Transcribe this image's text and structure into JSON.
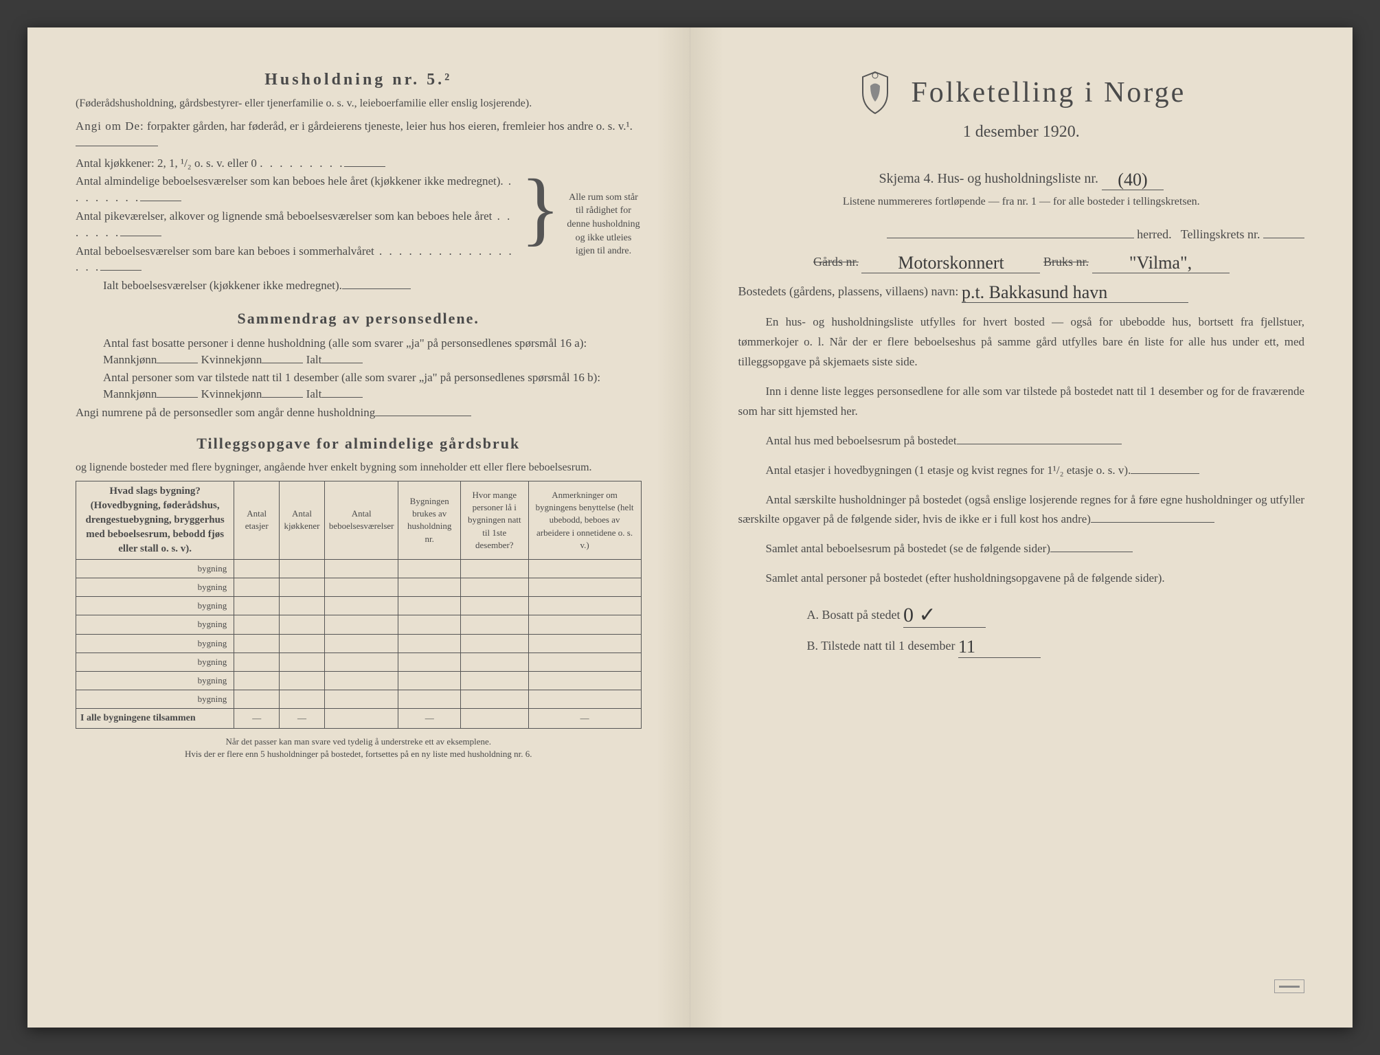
{
  "colors": {
    "paper": "#e8e0d0",
    "ink": "#4a4a4a",
    "background": "#3a3a3a",
    "rule": "#555555",
    "handwriting": "#3a3a3a"
  },
  "left": {
    "heading": "Husholdning nr. 5.²",
    "subheading": "(Føderådshusholdning, gårdsbestyrer- eller tjenerfamilie o. s. v., leieboerfamilie eller enslig losjerende).",
    "angi_label": "Angi om De:",
    "angi_text": "forpakter gården, har føderåd, er i gårdeierens tjeneste, leier hus hos eieren, fremleier hos andre o. s. v.¹.",
    "kitchen_label": "Antal kjøkkener: 2, 1, ¹/₂ o. s. v. eller 0",
    "rooms": [
      "Antal almindelige beboelsesværelser som kan beboes hele året (kjøkkener ikke medregnet).",
      "Antal pikeværelser, alkover og lignende små beboelsesværelser som kan beboes hele året",
      "Antal beboelsesværelser som bare kan beboes i sommerhalvåret"
    ],
    "rooms_total": "Ialt beboelsesværelser (kjøkkener ikke medregnet).",
    "brace_text": "Alle rum som står til rådighet for denne husholdning og ikke utleies igjen til andre.",
    "section2_heading": "Sammendrag av personsedlene.",
    "s2_line1a": "Antal fast bosatte personer i denne husholdning (alle som svarer „ja\" på personsedlenes spørsmål 16 a): Mannkjønn",
    "s2_kvinne": "Kvinnekjønn",
    "s2_ialt": "Ialt",
    "s2_line2a": "Antal personer som var tilstede natt til 1 desember (alle som svarer „ja\" på personsedlenes spørsmål 16 b): Mannkjønn",
    "s2_line3": "Angi numrene på de personsedler som angår denne husholdning",
    "section3_heading": "Tilleggsopgave for almindelige gårdsbruk",
    "s3_sub": "og lignende bosteder med flere bygninger, angående hver enkelt bygning som inneholder ett eller flere beboelsesrum.",
    "table": {
      "headers": [
        "Hvad slags bygning?\n(Hovedbygning, føderådshus, drengestuebygning, bryggerhus med beboelsesrum, bebodd fjøs eller stall o. s. v).",
        "Antal etasjer",
        "Antal kjøkkener",
        "Antal beboelsesværelser",
        "Bygningen brukes av husholdning nr.",
        "Hvor mange personer lå i bygningen natt til 1ste desember?",
        "Anmerkninger om bygningens benyttelse (helt ubebodd, beboes av arbeidere i onnetidene o. s. v.)"
      ],
      "row_label": "bygning",
      "num_rows": 8,
      "footer_row": "I alle bygningene tilsammen"
    },
    "footnote1": "Når det passer kan man svare ved tydelig å understreke ett av eksemplene.",
    "footnote2": "Hvis der er flere enn 5 husholdninger på bostedet, fortsettes på en ny liste med husholdning nr. 6."
  },
  "right": {
    "title": "Folketelling i Norge",
    "date": "1 desember 1920.",
    "skjema_label": "Skjema 4.  Hus- og husholdningsliste nr.",
    "skjema_nr": "(40)",
    "listene": "Listene nummereres fortløpende — fra nr. 1 — for alle bosteder i tellingskretsen.",
    "herred_label": "herred.",
    "tellingskrets_label": "Tellingskrets nr.",
    "gards_label": "Gårds nr.",
    "bruks_label": "Bruks nr.",
    "gards_handwritten": "Motorskonnert",
    "bruks_handwritten": "\"Vilma\",",
    "bosted_label": "Bostedets (gårdens, plassens, villaens) navn:",
    "bosted_handwritten": "p.t. Bakkasund havn",
    "para1": "En hus- og husholdningsliste utfylles for hvert bosted — også for ubebodde hus, bortsett fra fjellstuer, tømmerkojer o. l. Når der er flere beboelseshus på samme gård utfylles bare én liste for alle hus under ett, med tilleggsopgave på skjemaets siste side.",
    "para2": "Inn i denne liste legges personsedlene for alle som var tilstede på bostedet natt til 1 desember og for de fraværende som har sitt hjemsted her.",
    "q1": "Antal hus med beboelsesrum på bostedet",
    "q2": "Antal etasjer i hovedbygningen (1 etasje og kvist regnes for 1¹/₂ etasje o. s. v).",
    "q3": "Antal særskilte husholdninger på bostedet (også enslige losjerende regnes for å føre egne husholdninger og utfyller særskilte opgaver på de følgende sider, hvis de ikke er i full kost hos andre)",
    "q4": "Samlet antal beboelsesrum på bostedet (se de følgende sider)",
    "q5": "Samlet antal personer på bostedet (efter husholdningsopgavene på de følgende sider).",
    "qA_label": "A.  Bosatt på stedet",
    "qA_val": "0 ✓",
    "qB_label": "B.  Tilstede natt til 1 desember",
    "qB_val": "11"
  }
}
